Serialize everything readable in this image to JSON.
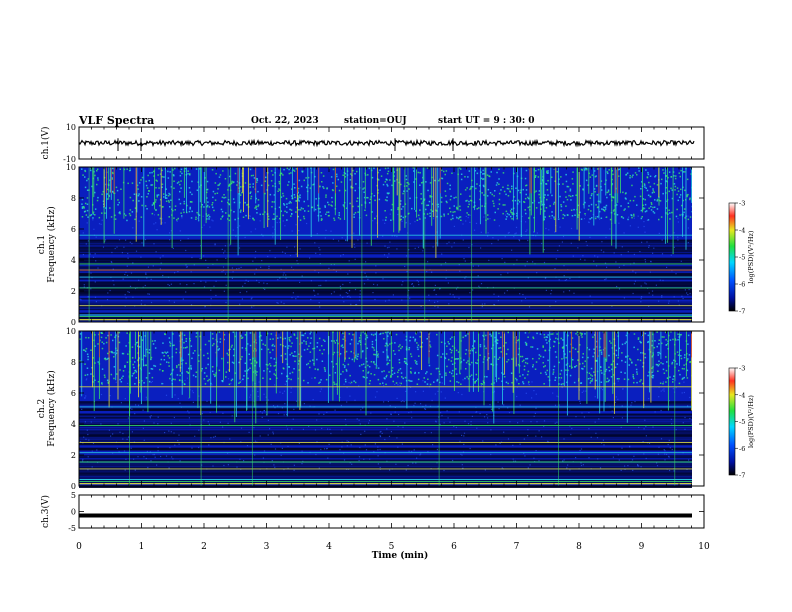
{
  "header": {
    "title": "VLF Spectra",
    "date": "Oct. 22, 2023",
    "station": "station=OUJ",
    "start_time": "start  UT =  9 : 30: 0"
  },
  "colors": {
    "spec_background": "#0a1fbf",
    "spec_dark": "#02062e",
    "spec_cyan": "#2ad3e6",
    "spec_green": "#39e66a",
    "spec_yellow": "#e8e43a",
    "spec_red": "#e02d2d",
    "waveform": "#000000"
  },
  "chart_data": [
    {
      "type": "line",
      "panel": "ch1-waveform",
      "ylabel": "ch.1(V)",
      "ylim": [
        -10,
        10
      ],
      "yticks": [
        "10",
        "-10"
      ],
      "xlim": [
        0,
        10
      ],
      "description_values": {
        "baseline": 0,
        "amplitude": 1.5
      }
    },
    {
      "type": "heatmap",
      "panel": "ch1-spectrogram",
      "ylabel": "ch.1\nFrequency (kHz)",
      "ylabel_lines": [
        "ch.1",
        "Frequency (kHz)"
      ],
      "ylim": [
        0,
        10
      ],
      "yticks": [
        "10",
        "8",
        "6",
        "4",
        "2",
        "0"
      ],
      "xlim": [
        0,
        10
      ],
      "colorbar": {
        "label": "log(PSD)(V²/Hz)",
        "range": [
          -7,
          -3
        ],
        "ticks": [
          "-3",
          "-4",
          "-5",
          "-6",
          "-7"
        ]
      }
    },
    {
      "type": "heatmap",
      "panel": "ch2-spectrogram",
      "ylabel": "ch.2\nFrequency (kHz)",
      "ylabel_lines": [
        "ch.2",
        "Frequency (kHz)"
      ],
      "ylim": [
        0,
        10
      ],
      "yticks": [
        "10",
        "8",
        "6",
        "4",
        "2",
        "0"
      ],
      "xlim": [
        0,
        10
      ],
      "colorbar": {
        "label": "log(PSD)(V²/Hz)",
        "range": [
          -7,
          -3
        ],
        "ticks": [
          "-3",
          "-4",
          "-5",
          "-6",
          "-7"
        ]
      }
    },
    {
      "type": "line",
      "panel": "ch3-waveform",
      "ylabel": "ch.3(V)",
      "ylim": [
        -5,
        5
      ],
      "yticks": [
        "5",
        "0",
        "-5"
      ],
      "xlim": [
        0,
        10
      ],
      "description_values": {
        "baseline": -1.2
      }
    }
  ],
  "xaxis": {
    "label": "Time (min)",
    "ticks": [
      "0",
      "1",
      "2",
      "3",
      "4",
      "5",
      "6",
      "7",
      "8",
      "9",
      "10"
    ]
  }
}
